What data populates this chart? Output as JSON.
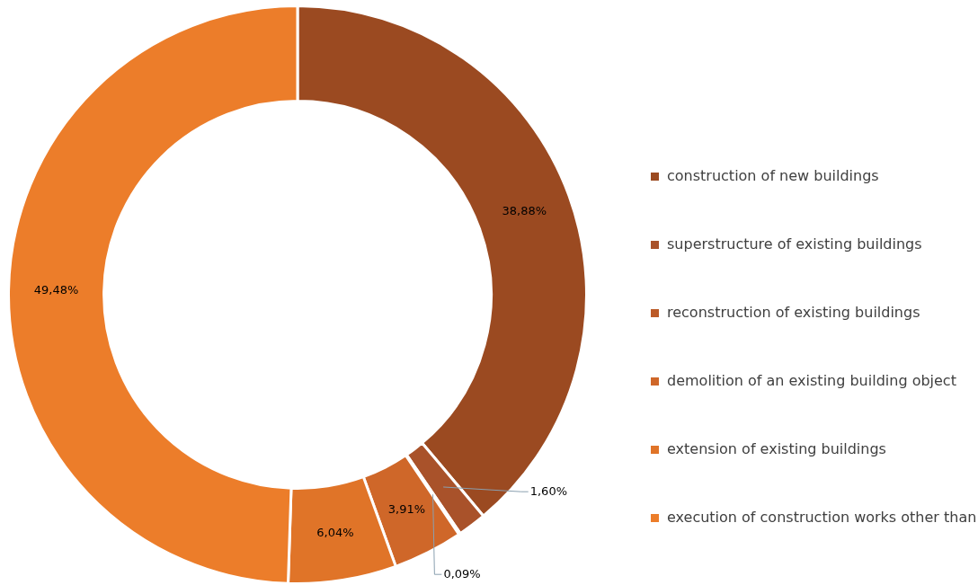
{
  "chart_data": {
    "type": "donut",
    "categories": [
      "construction of new buildings",
      "superstructure of existing buildings",
      "reconstruction of existing buildings",
      "demolition of an existing building object",
      "extension of existing buildings",
      "execution of construction works other than"
    ],
    "values": [
      38.88,
      1.6,
      0.09,
      3.91,
      6.04,
      49.48
    ],
    "value_labels": [
      "38,88%",
      "1,60%",
      "0,09%",
      "3,91%",
      "6,04%",
      "49,48%"
    ],
    "colors": [
      "#9b4a21",
      "#a9522a",
      "#bb5a27",
      "#cf6729",
      "#e07428",
      "#ec7d2a"
    ],
    "legend": "right"
  }
}
